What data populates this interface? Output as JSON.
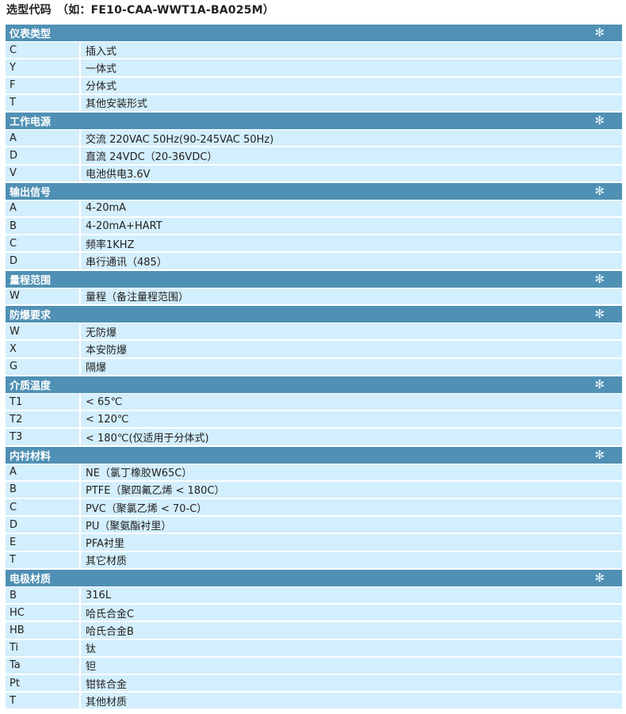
{
  "title": "选型代码　（如：FE10-CAA-WWT1A-BA025M）",
  "accent_color": "#4f90b4",
  "row_color": "#d3eefc",
  "header_icon": "snowflake-icon",
  "sections": [
    {
      "title": "仪表类型",
      "rows": [
        [
          "C",
          "插入式"
        ],
        [
          "Y",
          "一体式"
        ],
        [
          "F",
          "分体式"
        ],
        [
          "T",
          "其他安装形式"
        ]
      ]
    },
    {
      "title": "工作电源",
      "rows": [
        [
          "A",
          "交流 220VAC 50Hz(90-245VAC 50Hz)"
        ],
        [
          "D",
          "直流 24VDC（20-36VDC）"
        ],
        [
          "V",
          "电池供电3.6V"
        ]
      ]
    },
    {
      "title": "输出信号",
      "rows": [
        [
          "A",
          "4-20mA"
        ],
        [
          "B",
          "4-20mA+HART"
        ],
        [
          "C",
          "频率1KHZ"
        ],
        [
          "D",
          "串行通讯（485）"
        ]
      ]
    },
    {
      "title": "量程范围",
      "rows": [
        [
          "W",
          "量程（备注量程范围）"
        ]
      ]
    },
    {
      "title": "防爆要求",
      "rows": [
        [
          "W",
          "无防爆"
        ],
        [
          "X",
          "本安防爆"
        ],
        [
          "G",
          "隔爆"
        ]
      ]
    },
    {
      "title": "介质温度",
      "rows": [
        [
          "T1",
          "< 65℃"
        ],
        [
          "T2",
          "< 120℃"
        ],
        [
          "T3",
          "< 180℃(仅适用于分体式)"
        ]
      ]
    },
    {
      "title": "内衬材料",
      "rows": [
        [
          "A",
          "NE（氯丁橡胶W65C）"
        ],
        [
          "B",
          "PTFE（聚四氟乙烯 < 180C）"
        ],
        [
          "C",
          "PVC（聚氯乙烯 < 70-C）"
        ],
        [
          "D",
          "PU（聚氨酯衬里）"
        ],
        [
          "E",
          "PFA衬里"
        ],
        [
          "T",
          "其它材质"
        ]
      ]
    },
    {
      "title": "电极材质",
      "rows": [
        [
          "B",
          "316L"
        ],
        [
          "HC",
          "哈氏合金C"
        ],
        [
          "HB",
          "哈氏合金B"
        ],
        [
          "Ti",
          "钛"
        ],
        [
          "Ta",
          "钽"
        ],
        [
          "Pt",
          "钳铱合金"
        ],
        [
          "T",
          "其他材质"
        ]
      ]
    }
  ]
}
